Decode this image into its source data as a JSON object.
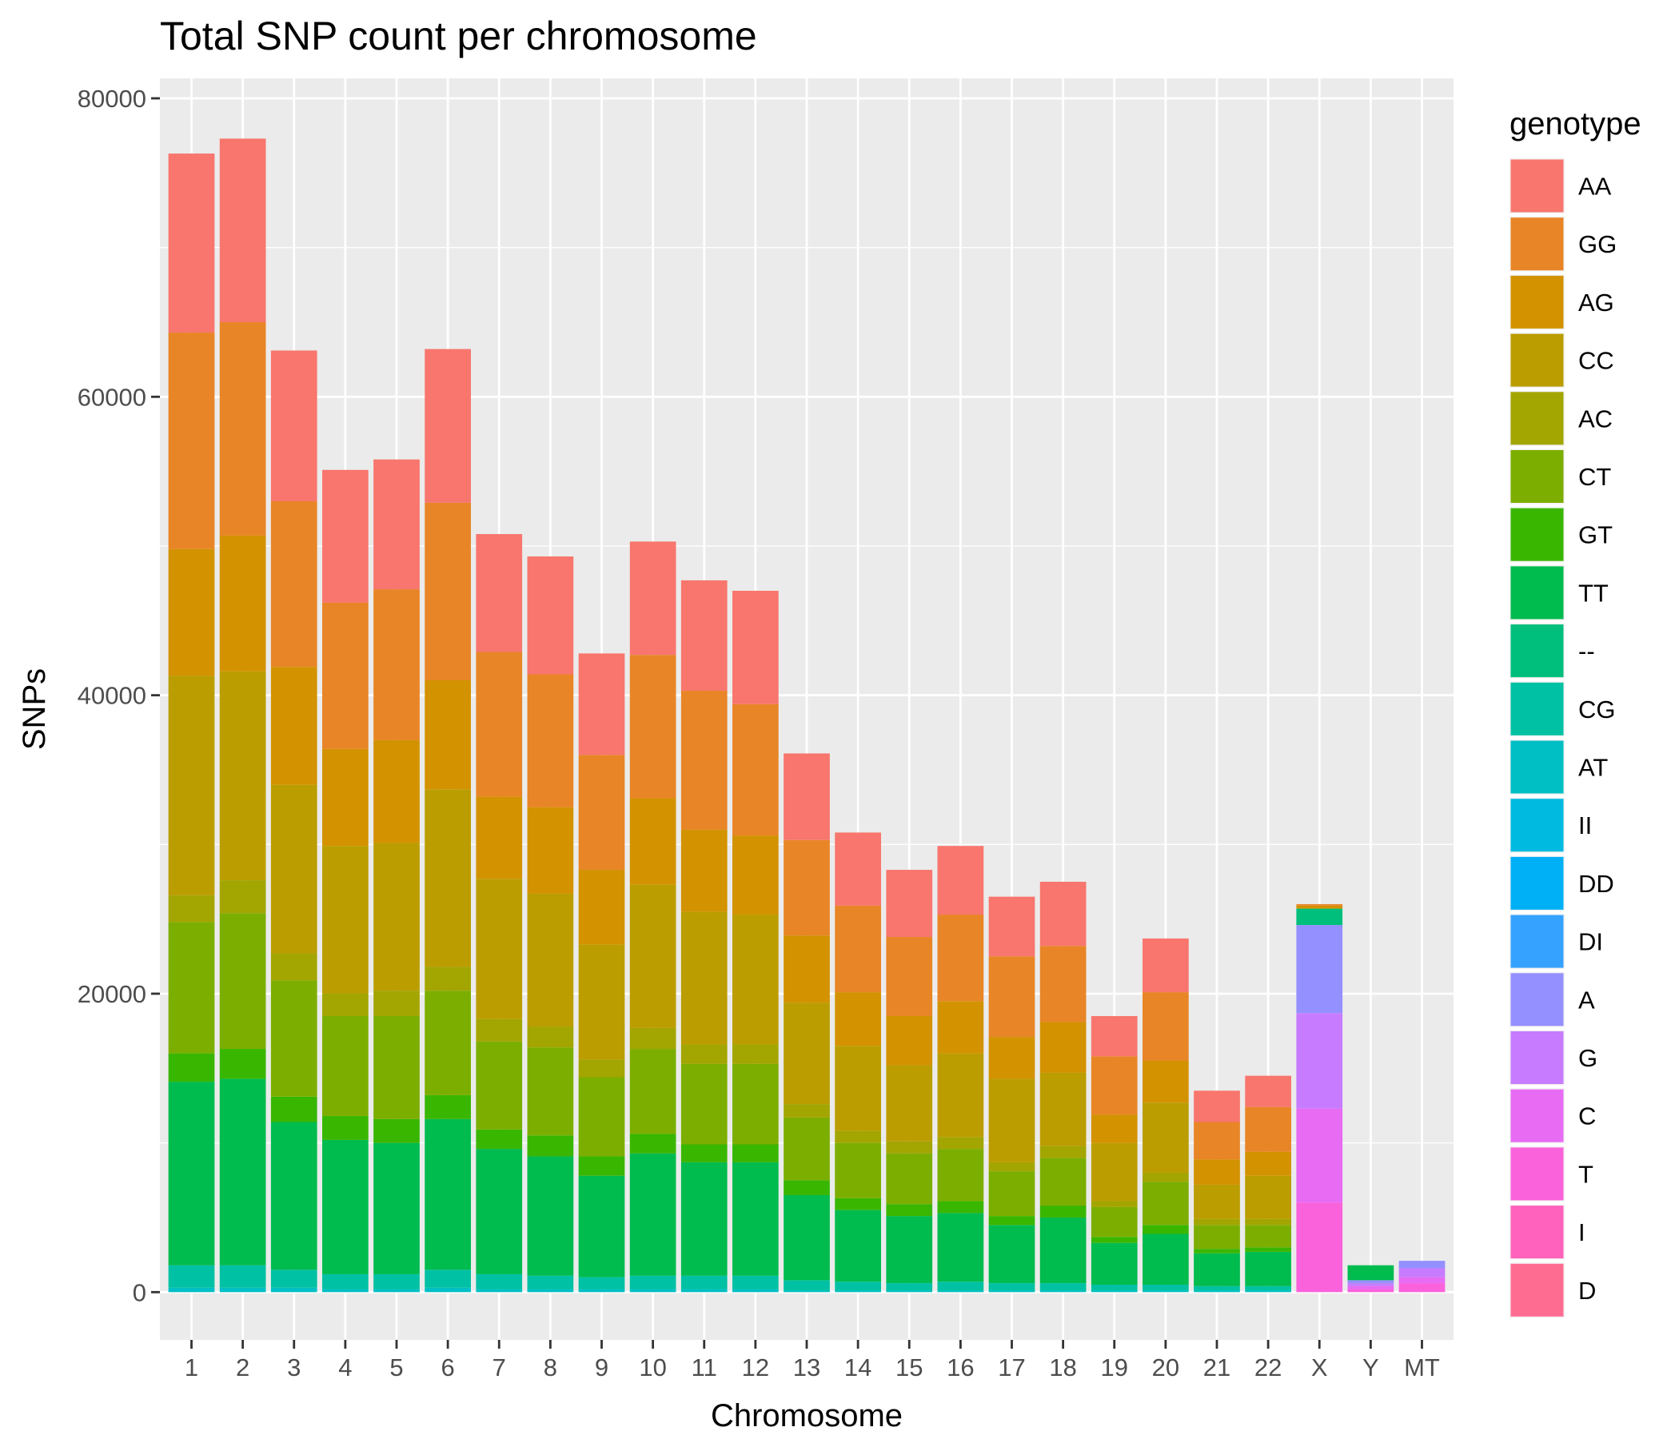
{
  "chart_data": {
    "type": "bar",
    "stacked": true,
    "title": "Total SNP count per chromosome",
    "xlabel": "Chromosome",
    "ylabel": "SNPs",
    "ylim": [
      -3700,
      81000
    ],
    "yticks": [
      0,
      20000,
      40000,
      60000,
      80000
    ],
    "ytick_labels": [
      "0",
      "20000",
      "40000",
      "60000",
      "80000"
    ],
    "grid": true,
    "legend_position": "right",
    "legend_title": "genotype",
    "categories": [
      "1",
      "2",
      "3",
      "4",
      "5",
      "6",
      "7",
      "8",
      "9",
      "10",
      "11",
      "12",
      "13",
      "14",
      "15",
      "16",
      "17",
      "18",
      "19",
      "20",
      "21",
      "22",
      "X",
      "Y",
      "MT"
    ],
    "series": [
      {
        "name": "AA",
        "color": "#F8766D",
        "values": [
          12000,
          12300,
          10100,
          8900,
          8700,
          10300,
          7900,
          7900,
          6800,
          7600,
          7400,
          7600,
          5800,
          4900,
          4500,
          4600,
          4000,
          4300,
          2700,
          3600,
          2100,
          2100,
          0,
          0,
          0
        ]
      },
      {
        "name": "GG",
        "color": "#E88526",
        "values": [
          14500,
          14300,
          11100,
          9800,
          10100,
          11900,
          9700,
          8900,
          7700,
          9600,
          9300,
          8800,
          6400,
          5800,
          5300,
          5800,
          5400,
          5100,
          3900,
          4600,
          2500,
          3000,
          0,
          0,
          0
        ]
      },
      {
        "name": "AG",
        "color": "#D39200",
        "values": [
          8500,
          9100,
          7900,
          6500,
          6900,
          7300,
          5500,
          5800,
          5000,
          5800,
          5500,
          5300,
          4500,
          3600,
          3300,
          3500,
          2800,
          3400,
          1900,
          2800,
          1700,
          1600,
          0,
          0,
          0
        ]
      },
      {
        "name": "CC",
        "color": "#BB9D00",
        "values": [
          14700,
          14000,
          11300,
          9900,
          9900,
          11900,
          9400,
          8900,
          7700,
          9600,
          8900,
          8700,
          6800,
          5700,
          5100,
          5600,
          5600,
          4900,
          3900,
          4700,
          2300,
          2900,
          0,
          0,
          0
        ]
      },
      {
        "name": "AC",
        "color": "#A3A500",
        "values": [
          1800,
          2200,
          1800,
          1500,
          1700,
          1600,
          1500,
          1400,
          1200,
          1400,
          1300,
          1300,
          900,
          800,
          800,
          800,
          600,
          800,
          400,
          600,
          400,
          400,
          0,
          0,
          0
        ]
      },
      {
        "name": "CT",
        "color": "#7CAE00",
        "values": [
          8800,
          9100,
          7800,
          6700,
          6900,
          7000,
          5900,
          5900,
          5300,
          5700,
          5400,
          5400,
          4200,
          3700,
          3400,
          3500,
          3000,
          3200,
          2000,
          2900,
          1600,
          1500,
          0,
          0,
          0
        ]
      },
      {
        "name": "GT",
        "color": "#39B600",
        "values": [
          1900,
          2000,
          1700,
          1600,
          1600,
          1600,
          1300,
          1400,
          1300,
          1300,
          1200,
          1200,
          1000,
          800,
          800,
          800,
          600,
          800,
          400,
          600,
          300,
          300,
          0,
          0,
          0
        ]
      },
      {
        "name": "TT",
        "color": "#00BB4E",
        "values": [
          12300,
          12500,
          9900,
          9000,
          8800,
          10100,
          8400,
          8000,
          6800,
          8200,
          7600,
          7600,
          5700,
          4800,
          4500,
          4600,
          3900,
          4400,
          2800,
          3400,
          2200,
          2300,
          0,
          1000,
          0
        ]
      },
      {
        "name": "--",
        "color": "#00BF7D",
        "values": [
          0,
          0,
          0,
          0,
          0,
          0,
          0,
          0,
          0,
          0,
          0,
          0,
          0,
          0,
          0,
          0,
          0,
          0,
          0,
          0,
          0,
          0,
          1100,
          0,
          0
        ]
      },
      {
        "name": "CG",
        "color": "#00C1A3",
        "values": [
          1500,
          1500,
          1200,
          1000,
          1000,
          1200,
          1000,
          900,
          800,
          900,
          900,
          900,
          700,
          600,
          500,
          600,
          500,
          500,
          400,
          400,
          300,
          300,
          0,
          0,
          0
        ]
      },
      {
        "name": "AT",
        "color": "#00BFC4",
        "values": [
          300,
          300,
          300,
          200,
          200,
          300,
          200,
          200,
          200,
          200,
          200,
          200,
          100,
          100,
          100,
          100,
          100,
          100,
          100,
          100,
          100,
          100,
          0,
          0,
          0
        ]
      },
      {
        "name": "II",
        "color": "#00BAE0",
        "values": [
          0,
          0,
          0,
          0,
          0,
          0,
          0,
          0,
          0,
          0,
          0,
          0,
          0,
          0,
          0,
          0,
          0,
          0,
          0,
          0,
          0,
          0,
          0,
          0,
          0
        ]
      },
      {
        "name": "DD",
        "color": "#00B0F6",
        "values": [
          0,
          0,
          0,
          0,
          0,
          0,
          0,
          0,
          0,
          0,
          0,
          0,
          0,
          0,
          0,
          0,
          0,
          0,
          0,
          0,
          0,
          0,
          0,
          0,
          0
        ]
      },
      {
        "name": "DI",
        "color": "#35A2FF",
        "values": [
          0,
          0,
          0,
          0,
          0,
          0,
          0,
          0,
          0,
          0,
          0,
          0,
          0,
          0,
          0,
          0,
          0,
          0,
          0,
          0,
          0,
          0,
          0,
          0,
          0
        ]
      },
      {
        "name": "A",
        "color": "#9590FF",
        "values": [
          0,
          0,
          0,
          0,
          0,
          0,
          0,
          0,
          0,
          0,
          0,
          0,
          0,
          0,
          0,
          0,
          0,
          0,
          0,
          0,
          0,
          0,
          5900,
          200,
          500
        ]
      },
      {
        "name": "G",
        "color": "#C77CFF",
        "values": [
          0,
          0,
          0,
          0,
          0,
          0,
          0,
          0,
          0,
          0,
          0,
          0,
          0,
          0,
          0,
          0,
          0,
          0,
          0,
          0,
          0,
          0,
          6400,
          200,
          600
        ]
      },
      {
        "name": "C",
        "color": "#E76BF3",
        "values": [
          0,
          0,
          0,
          0,
          0,
          0,
          0,
          0,
          0,
          0,
          0,
          0,
          0,
          0,
          0,
          0,
          0,
          0,
          0,
          0,
          0,
          0,
          6300,
          200,
          400
        ]
      },
      {
        "name": "T",
        "color": "#FA62DB",
        "values": [
          0,
          0,
          0,
          0,
          0,
          0,
          0,
          0,
          0,
          0,
          0,
          0,
          0,
          0,
          0,
          0,
          0,
          0,
          0,
          0,
          0,
          0,
          6000,
          200,
          600
        ]
      },
      {
        "name": "I",
        "color": "#FF62BC",
        "values": [
          0,
          0,
          0,
          0,
          0,
          0,
          0,
          0,
          0,
          0,
          0,
          0,
          0,
          0,
          0,
          0,
          0,
          0,
          0,
          0,
          0,
          0,
          0,
          0,
          0
        ]
      },
      {
        "name": "D",
        "color": "#FF6C91",
        "values": [
          0,
          0,
          0,
          0,
          0,
          0,
          0,
          0,
          0,
          0,
          0,
          0,
          0,
          0,
          0,
          0,
          0,
          0,
          0,
          0,
          0,
          0,
          0,
          0,
          0
        ]
      }
    ],
    "extra_top": {
      "X": [
        {
          "name": "AG",
          "color": "#D39200",
          "value": 200
        },
        {
          "name": "GG",
          "color": "#E88526",
          "value": 100
        }
      ]
    },
    "colors": {
      "panel_background": "#EBEBEB",
      "grid_major": "#FFFFFF",
      "tick_text": "#4D4D4D"
    }
  }
}
